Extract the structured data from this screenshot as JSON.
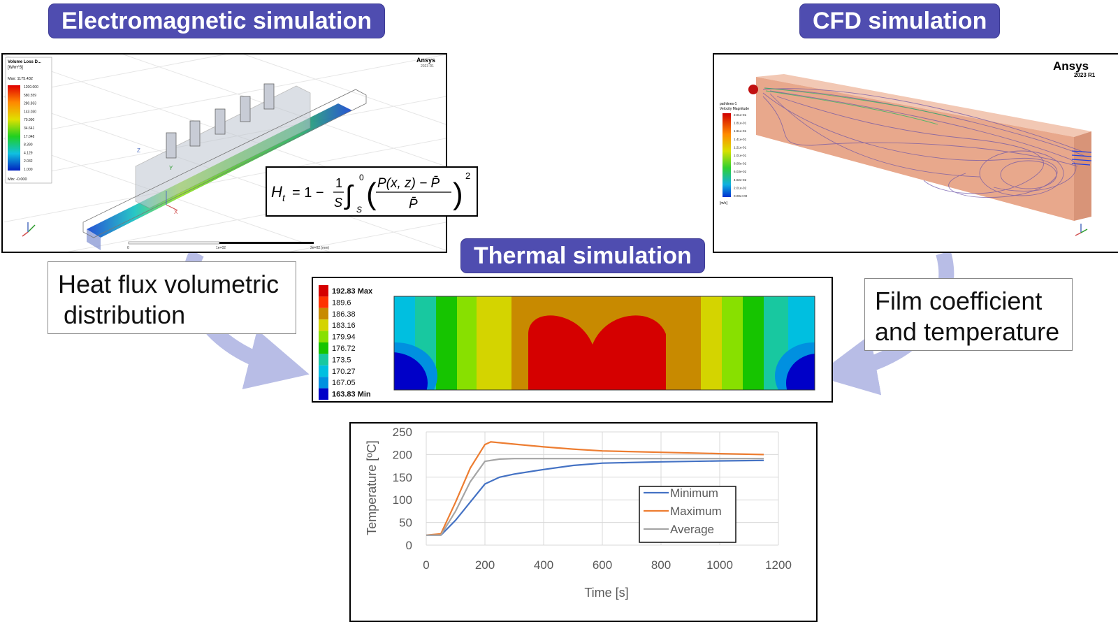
{
  "titles": {
    "em": "Electromagnetic simulation",
    "cfd": "CFD simulation",
    "thermal": "Thermal simulation"
  },
  "captions": {
    "heat_flux_line1": "Heat flux volumetric",
    "heat_flux_line2": "distribution",
    "film_line1": "Film coefficient",
    "film_line2": "and temperature"
  },
  "em_panel": {
    "legend_title": "Volume Loss D...",
    "legend_unit": "[W/m^3]",
    "max_label": "Max: 1175.432",
    "min_label": "Min: -0.000",
    "legend_values": [
      "1200.000",
      "580.559",
      "280.833",
      "143.030",
      "70.990",
      "34.641",
      "17.048",
      "8.390",
      "4.129",
      "2.032",
      "1.000"
    ],
    "brand": "Ansys",
    "brand_sub": "2023 R1",
    "axis_z": "Z",
    "axis_x": "X",
    "axis_y": "Y",
    "scale_left": "0",
    "scale_mid": "1e+02",
    "scale_right": "2e+02 (mm)"
  },
  "formula": {
    "lhs": "H",
    "lhs_sub": "t",
    "eq": "= 1 −",
    "frac_num": "1",
    "frac_den": "S",
    "int_upper": "0",
    "int_lower": "S",
    "inner_num": "P(x, z) − P̄",
    "inner_den": "P̄",
    "power": "2"
  },
  "cfd_panel": {
    "brand": "Ansys",
    "brand_sub": "2023 R1",
    "legend_title1": "pathlines-1",
    "legend_title2": "Velocity Magnitude",
    "legend_values": [
      "2.01e-01",
      "1.81e-01",
      "1.61e-01",
      "1.41e-01",
      "1.21e-01",
      "1.01e-01",
      "8.05e-02",
      "6.03e-02",
      "4.02e-02",
      "2.01e-02",
      "0.00e+00"
    ],
    "legend_unit": "[m/s]"
  },
  "thermal_panel": {
    "legend_values": [
      "192.83 Max",
      "189.6",
      "186.38",
      "183.16",
      "179.94",
      "176.72",
      "173.5",
      "170.27",
      "167.05",
      "163.83 Min"
    ],
    "legend_colors": [
      "#d50000",
      "#ff3300",
      "#c88a00",
      "#d4d400",
      "#88e000",
      "#16c400",
      "#18c8a0",
      "#00bfe0",
      "#0090e0",
      "#0000c8"
    ]
  },
  "colors": {
    "accent": "#4f4db0",
    "arrow": "#b8bde6",
    "min_line": "#4472c4",
    "max_line": "#ed7d31",
    "avg_line": "#a5a5a5"
  },
  "chart_data": {
    "type": "line",
    "title": "",
    "xlabel": "Time [s]",
    "ylabel": "Temperature [ºC]",
    "xlim": [
      0,
      1200
    ],
    "ylim": [
      0,
      250
    ],
    "xticks": [
      0,
      200,
      400,
      600,
      800,
      1000,
      1200
    ],
    "yticks": [
      0,
      50,
      100,
      150,
      200,
      250
    ],
    "grid": true,
    "legend_position": "bottom-right",
    "series": [
      {
        "name": "Minimum",
        "color": "#4472c4",
        "x": [
          0,
          50,
          100,
          150,
          200,
          250,
          300,
          400,
          500,
          600,
          800,
          1000,
          1150
        ],
        "y": [
          22,
          22,
          55,
          95,
          135,
          150,
          157,
          167,
          176,
          181,
          184,
          186,
          187
        ]
      },
      {
        "name": "Maximum",
        "color": "#ed7d31",
        "x": [
          0,
          50,
          100,
          150,
          200,
          220,
          300,
          400,
          500,
          600,
          800,
          1000,
          1150
        ],
        "y": [
          22,
          25,
          95,
          170,
          222,
          228,
          223,
          217,
          212,
          208,
          205,
          202,
          200
        ]
      },
      {
        "name": "Average",
        "color": "#a5a5a5",
        "x": [
          0,
          50,
          100,
          150,
          200,
          250,
          300,
          400,
          600,
          800,
          1000,
          1150
        ],
        "y": [
          22,
          22,
          75,
          140,
          185,
          190,
          191,
          191,
          191,
          191,
          191,
          191
        ]
      }
    ]
  }
}
